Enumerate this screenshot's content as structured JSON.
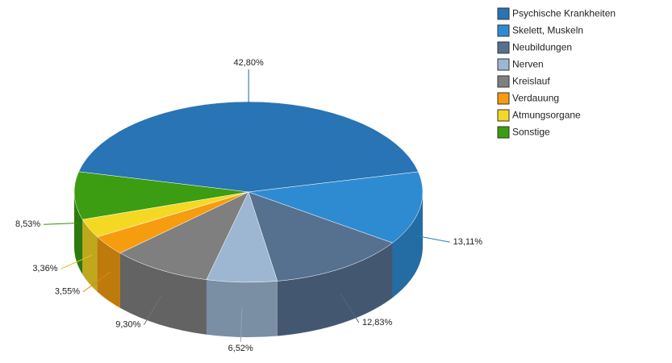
{
  "chart_data": {
    "type": "pie",
    "categories": [
      "Psychische Krankheiten",
      "Skelett, Muskeln",
      "Neubildungen",
      "Nerven",
      "Kreislauf",
      "Verdauung",
      "Atmungsorgane",
      "Sonstige"
    ],
    "values": [
      42.8,
      13.11,
      12.83,
      6.52,
      9.3,
      3.55,
      3.36,
      8.53
    ],
    "value_labels": [
      "42,80%",
      "13,11%",
      "12,83%",
      "6,52%",
      "9,30%",
      "3,55%",
      "3,36%",
      "8,53%"
    ],
    "colors": [
      "#2874b4",
      "#2e8bd2",
      "#56718f",
      "#9db6d2",
      "#7f7f7f",
      "#f59c0f",
      "#f5d823",
      "#3c9c12"
    ],
    "legend": "top-right"
  }
}
